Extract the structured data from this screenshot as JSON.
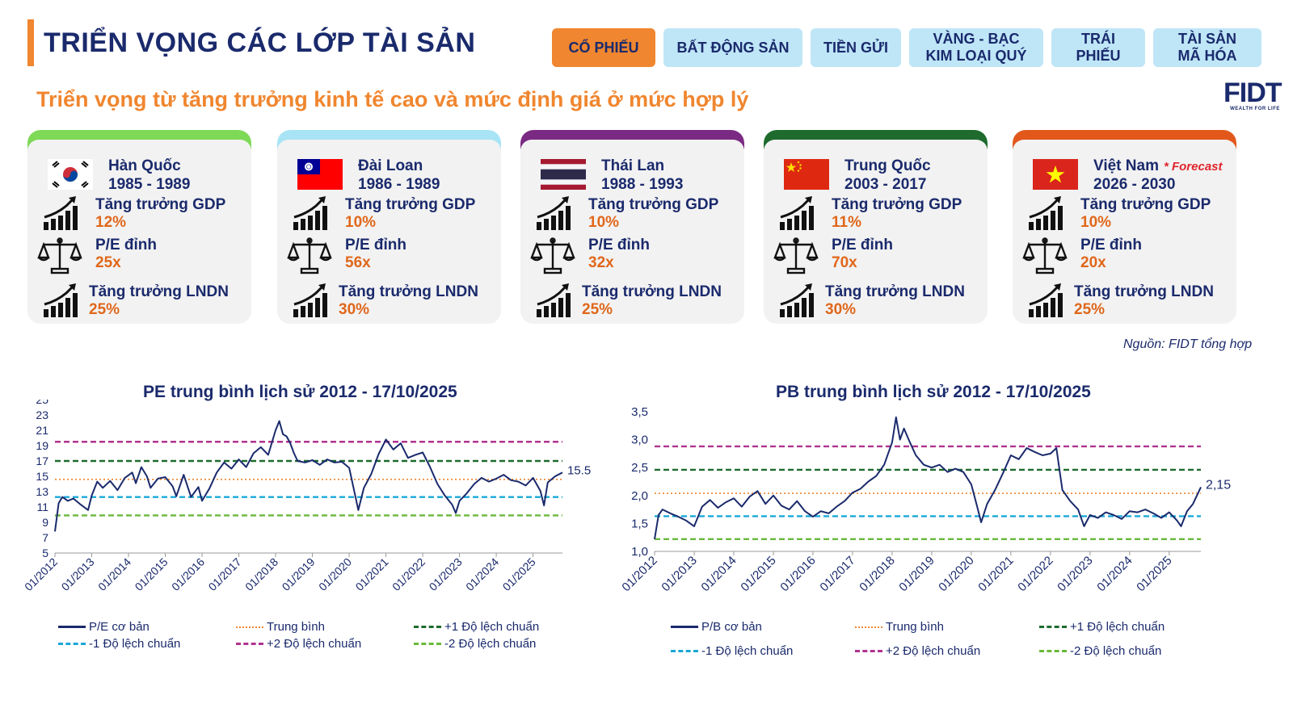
{
  "header": {
    "title": "TRIỂN VỌNG CÁC LỚP TÀI SẢN",
    "subtitle": "Triển vọng từ tăng trưởng kinh tế cao và mức định giá ở mức hợp lý",
    "tabs": [
      {
        "label": "CỔ PHIẾU",
        "active": true
      },
      {
        "label": "BẤT ĐỘNG SẢN",
        "active": false
      },
      {
        "label": "TIỀN GỬI",
        "active": false
      },
      {
        "label": "VÀNG - BẠC\nKIM LOẠI QUÝ",
        "active": false
      },
      {
        "label": "TRÁI\nPHIẾU",
        "active": false
      },
      {
        "label": "TÀI SẢN\nMÃ HÓA",
        "active": false
      }
    ],
    "logo": {
      "text": "FIDT",
      "tagline": "WEALTH FOR LIFE"
    }
  },
  "colors": {
    "navy": "#1a2a6c",
    "orange": "#f0862f",
    "value_orange": "#e0671b",
    "tab_bg": "#bfe6f7",
    "card_bg": "#f2f2f2"
  },
  "cards": [
    {
      "country": "Hàn Quốc",
      "period": "1985 - 1989",
      "accent": "#7ed957",
      "flag": "south-korea-flag",
      "gdp_label": "Tăng trưởng GDP",
      "gdp": "12%",
      "pe_label": "P/E đỉnh",
      "pe": "25x",
      "ln_label": "Tăng trưởng LNDN",
      "ln": "25%",
      "forecast": ""
    },
    {
      "country": "Đài Loan",
      "period": "1986 - 1989",
      "accent": "#a8e4f5",
      "flag": "taiwan-flag",
      "gdp_label": "Tăng trưởng GDP",
      "gdp": "10%",
      "pe_label": "P/E đỉnh",
      "pe": "56x",
      "ln_label": "Tăng trưởng LNDN",
      "ln": "30%",
      "forecast": ""
    },
    {
      "country": "Thái Lan",
      "period": "1988 - 1993",
      "accent": "#7b2a83",
      "flag": "thailand-flag",
      "gdp_label": "Tăng trưởng GDP",
      "gdp": "10%",
      "pe_label": "P/E đỉnh",
      "pe": "32x",
      "ln_label": "Tăng trưởng LNDN",
      "ln": "25%",
      "forecast": ""
    },
    {
      "country": "Trung Quốc",
      "period": "2003 - 2017",
      "accent": "#1e6b2d",
      "flag": "china-flag",
      "gdp_label": "Tăng trưởng GDP",
      "gdp": "11%",
      "pe_label": "P/E đỉnh",
      "pe": "70x",
      "ln_label": "Tăng trưởng LNDN",
      "ln": "30%",
      "forecast": ""
    },
    {
      "country": "Việt Nam",
      "period": "2026 - 2030",
      "accent": "#e2581b",
      "flag": "vietnam-flag",
      "gdp_label": "Tăng trưởng GDP",
      "gdp": "10%",
      "pe_label": "P/E đỉnh",
      "pe": "20x",
      "ln_label": "Tăng trưởng LNDN",
      "ln": "25%",
      "forecast": "* Forecast"
    }
  ],
  "source": "Nguồn: FIDT tổng hợp",
  "chart_data": [
    {
      "type": "line",
      "title": "PE trung bình lịch sử 2012 - 17/10/2025",
      "ylim": [
        5,
        25
      ],
      "yticks": [
        "5",
        "7",
        "9",
        "11",
        "13",
        "15",
        "17",
        "19",
        "21",
        "23",
        "25"
      ],
      "xticks": [
        "01/2012",
        "01/2013",
        "01/2014",
        "01/2015",
        "01/2016",
        "01/2017",
        "01/2018",
        "01/2019",
        "01/2020",
        "01/2021",
        "01/2022",
        "01/2023",
        "01/2024",
        "01/2025"
      ],
      "xrange": [
        2012.0,
        2025.8
      ],
      "end_label": "15.5",
      "series": [
        {
          "name": "P/E cơ bản",
          "color": "#1a2a6c",
          "style": "solid",
          "x": [
            2012.0,
            2012.1,
            2012.2,
            2012.35,
            2012.5,
            2012.7,
            2012.9,
            2013.0,
            2013.15,
            2013.3,
            2013.5,
            2013.7,
            2013.9,
            2014.1,
            2014.2,
            2014.35,
            2014.5,
            2014.6,
            2014.8,
            2015.0,
            2015.2,
            2015.3,
            2015.5,
            2015.7,
            2015.9,
            2016.0,
            2016.2,
            2016.4,
            2016.6,
            2016.8,
            2017.0,
            2017.2,
            2017.4,
            2017.6,
            2017.8,
            2018.0,
            2018.1,
            2018.2,
            2018.3,
            2018.4,
            2018.5,
            2018.6,
            2018.8,
            2019.0,
            2019.2,
            2019.4,
            2019.6,
            2019.8,
            2020.0,
            2020.15,
            2020.25,
            2020.4,
            2020.6,
            2020.8,
            2021.0,
            2021.2,
            2021.4,
            2021.6,
            2021.8,
            2022.0,
            2022.2,
            2022.4,
            2022.6,
            2022.8,
            2022.9,
            2023.0,
            2023.2,
            2023.4,
            2023.6,
            2023.8,
            2024.0,
            2024.2,
            2024.4,
            2024.6,
            2024.8,
            2025.0,
            2025.2,
            2025.3,
            2025.4,
            2025.6,
            2025.8
          ],
          "y": [
            7.8,
            11.5,
            12.3,
            11.8,
            12.1,
            11.3,
            10.6,
            12.5,
            14.3,
            13.5,
            14.4,
            13.2,
            14.8,
            15.5,
            14.1,
            16.2,
            15.0,
            13.5,
            14.7,
            14.9,
            13.7,
            12.4,
            15.2,
            12.3,
            13.6,
            11.8,
            13.4,
            15.5,
            16.8,
            16.0,
            17.2,
            16.2,
            18.0,
            18.8,
            17.8,
            21.0,
            22.2,
            20.5,
            20.2,
            19.3,
            18.0,
            17.0,
            16.8,
            17.1,
            16.5,
            17.2,
            16.8,
            16.9,
            16.1,
            12.8,
            10.6,
            13.5,
            15.3,
            17.9,
            19.8,
            18.5,
            19.3,
            17.4,
            17.8,
            18.1,
            16.2,
            14.0,
            12.5,
            11.3,
            10.2,
            11.8,
            12.8,
            14.0,
            14.8,
            14.3,
            14.7,
            15.2,
            14.5,
            14.3,
            13.8,
            14.8,
            13.1,
            11.2,
            14.2,
            15.0,
            15.5
          ]
        },
        {
          "name": "Trung bình",
          "color": "#f0862f",
          "style": "dotted",
          "value": 14.6
        },
        {
          "name": "+1 Độ lệch chuẩn",
          "color": "#1e6b2d",
          "style": "dashed",
          "value": 17.0
        },
        {
          "name": "-1 Độ lệch chuẩn",
          "color": "#1aa8d8",
          "style": "dashed",
          "value": 12.3
        },
        {
          "name": "+2 Độ lệch chuẩn",
          "color": "#b0338f",
          "style": "dashed",
          "value": 19.5
        },
        {
          "name": "-2 Độ lệch chuẩn",
          "color": "#6ab83b",
          "style": "dashed",
          "value": 9.9
        }
      ]
    },
    {
      "type": "line",
      "title": "PB trung bình lịch sử 2012 - 17/10/2025",
      "ylim": [
        1.0,
        3.5
      ],
      "yticks": [
        "1,0",
        "1,5",
        "2,0",
        "2,5",
        "3,0",
        "3,5"
      ],
      "xticks": [
        "01/2012",
        "01/2013",
        "01/2014",
        "01/2015",
        "01/2016",
        "01/2017",
        "01/2018",
        "01/2019",
        "01/2020",
        "01/2021",
        "01/2022",
        "01/2023",
        "01/2024",
        "01/2025"
      ],
      "xrange": [
        2012.0,
        2025.8
      ],
      "end_label": "2,15",
      "series": [
        {
          "name": "P/B cơ bản",
          "color": "#1a2a6c",
          "style": "solid",
          "x": [
            2012.0,
            2012.1,
            2012.2,
            2012.4,
            2012.6,
            2012.8,
            2013.0,
            2013.2,
            2013.4,
            2013.6,
            2013.8,
            2014.0,
            2014.2,
            2014.4,
            2014.6,
            2014.8,
            2015.0,
            2015.2,
            2015.4,
            2015.6,
            2015.8,
            2016.0,
            2016.2,
            2016.4,
            2016.6,
            2016.8,
            2017.0,
            2017.2,
            2017.4,
            2017.6,
            2017.8,
            2018.0,
            2018.1,
            2018.2,
            2018.3,
            2018.45,
            2018.6,
            2018.8,
            2019.0,
            2019.2,
            2019.4,
            2019.6,
            2019.8,
            2020.0,
            2020.15,
            2020.25,
            2020.4,
            2020.6,
            2020.8,
            2021.0,
            2021.2,
            2021.4,
            2021.6,
            2021.8,
            2022.0,
            2022.15,
            2022.3,
            2022.5,
            2022.7,
            2022.85,
            2023.0,
            2023.2,
            2023.4,
            2023.6,
            2023.8,
            2024.0,
            2024.2,
            2024.4,
            2024.6,
            2024.8,
            2025.0,
            2025.2,
            2025.3,
            2025.45,
            2025.6,
            2025.8
          ],
          "y": [
            1.22,
            1.65,
            1.75,
            1.68,
            1.62,
            1.55,
            1.45,
            1.8,
            1.92,
            1.78,
            1.88,
            1.95,
            1.8,
            1.98,
            2.08,
            1.85,
            2.0,
            1.82,
            1.75,
            1.9,
            1.72,
            1.62,
            1.72,
            1.68,
            1.8,
            1.9,
            2.05,
            2.12,
            2.25,
            2.35,
            2.55,
            2.95,
            3.4,
            3.0,
            3.2,
            2.95,
            2.72,
            2.55,
            2.5,
            2.55,
            2.42,
            2.48,
            2.42,
            2.2,
            1.8,
            1.52,
            1.85,
            2.1,
            2.4,
            2.72,
            2.65,
            2.85,
            2.78,
            2.72,
            2.75,
            2.85,
            2.1,
            1.9,
            1.75,
            1.45,
            1.65,
            1.6,
            1.7,
            1.65,
            1.58,
            1.72,
            1.7,
            1.75,
            1.68,
            1.6,
            1.7,
            1.55,
            1.45,
            1.72,
            1.85,
            2.15
          ]
        },
        {
          "name": "Trung bình",
          "color": "#f0862f",
          "style": "dotted",
          "value": 2.04
        },
        {
          "name": "+1 Độ lệch chuẩn",
          "color": "#1e6b2d",
          "style": "dashed",
          "value": 2.46
        },
        {
          "name": "-1 Độ lệch chuẩn",
          "color": "#1aa8d8",
          "style": "dashed",
          "value": 1.63
        },
        {
          "name": "+2 Độ lệch chuẩn",
          "color": "#b0338f",
          "style": "dashed",
          "value": 2.88
        },
        {
          "name": "-2 Độ lệch chuẩn",
          "color": "#6ab83b",
          "style": "dashed",
          "value": 1.22
        }
      ]
    }
  ]
}
